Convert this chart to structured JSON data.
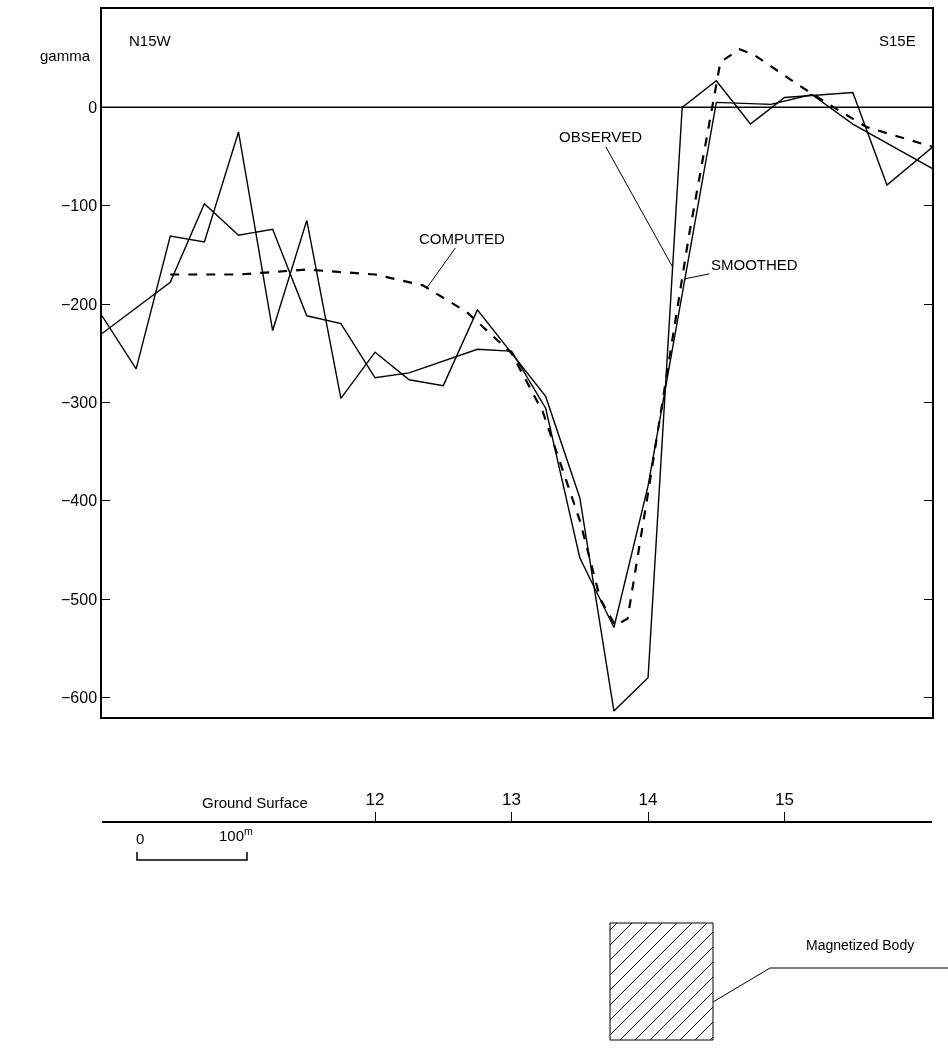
{
  "chart_data": {
    "type": "line",
    "ylabel": "gamma",
    "xlim": [
      10,
      16.08
    ],
    "xticks": [
      12,
      13,
      14,
      15
    ],
    "ylim": [
      -620,
      100
    ],
    "yticks": [
      {
        "value": 100,
        "label": null
      },
      0,
      -100,
      -200,
      -300,
      -400,
      -500,
      -600
    ],
    "series": [
      {
        "name": "OBSERVED",
        "color": "#000000",
        "line_style": "solid",
        "x": [
          10.0,
          10.25,
          10.5,
          10.75,
          11.0,
          11.25,
          11.5,
          11.75,
          12.0,
          12.25,
          12.5,
          12.75,
          13.0,
          13.25,
          13.5,
          13.75,
          14.0,
          14.25,
          14.5,
          14.75,
          15.0,
          15.5,
          15.75,
          16.08
        ],
        "values": [
          -212,
          -266,
          -131,
          -137,
          -25,
          -227,
          -115,
          -296,
          -249,
          -277,
          -283,
          -206,
          -250,
          -294,
          -397,
          -614,
          -580,
          0,
          27,
          -17,
          10,
          15,
          -79,
          -41
        ]
      },
      {
        "name": "SMOOTHED",
        "color": "#000000",
        "line_style": "solid",
        "x": [
          10.0,
          10.5,
          10.75,
          11.0,
          11.25,
          11.5,
          11.75,
          12.0,
          12.25,
          12.75,
          13.0,
          13.25,
          13.5,
          13.75,
          14.0,
          14.5,
          14.9,
          15.2,
          15.5,
          16.08
        ],
        "values": [
          -230,
          -178,
          -98,
          -130,
          -124,
          -212,
          -220,
          -275,
          -270,
          -246,
          -248,
          -306,
          -458,
          -529,
          -385,
          5,
          3,
          13,
          -17,
          -62
        ]
      },
      {
        "name": "COMPUTED",
        "color": "#000000",
        "line_style": "dashed",
        "x": [
          10.5,
          11.0,
          11.5,
          12.0,
          12.35,
          12.67,
          13.0,
          13.23,
          13.5,
          13.65,
          13.76,
          13.85,
          14.0,
          14.12,
          14.3,
          14.53,
          14.67,
          14.77,
          15.11,
          15.36,
          15.6,
          16.08
        ],
        "values": [
          -170,
          -170,
          -165,
          -170,
          -181,
          -208,
          -250,
          -310,
          -420,
          -500,
          -527,
          -520,
          -392,
          -287,
          -130,
          46,
          59,
          54,
          22,
          0,
          -20,
          -40
        ]
      }
    ],
    "ref_lines": [
      {
        "axis": "y",
        "value": 0
      }
    ],
    "annotations": [
      "N15W",
      "S15E",
      "Ground Surface",
      "0",
      "100$^{m}$",
      "Magnetized Body"
    ],
    "marker": "none",
    "legend": false
  }
}
